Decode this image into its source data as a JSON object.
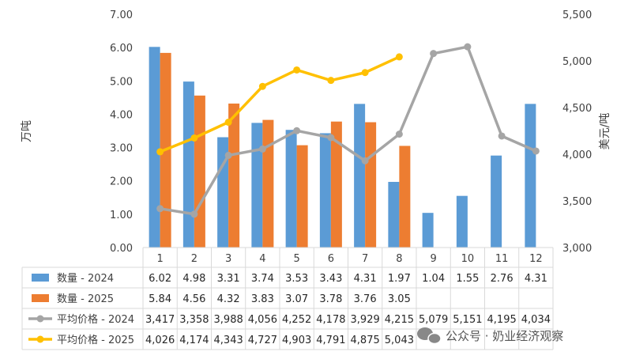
{
  "chart_data": {
    "type": "bar",
    "categories": [
      "1",
      "2",
      "3",
      "4",
      "5",
      "6",
      "7",
      "8",
      "9",
      "10",
      "11",
      "12"
    ],
    "ylabel_left": "万吨",
    "ylabel_right": "美元/吨",
    "ylim_left": [
      0,
      7
    ],
    "yticks_left": [
      "0.00",
      "1.00",
      "2.00",
      "3.00",
      "4.00",
      "5.00",
      "6.00",
      "7.00"
    ],
    "ylim_right": [
      3000,
      5500
    ],
    "yticks_right": [
      "3,000",
      "3,500",
      "4,000",
      "4,500",
      "5,000",
      "5,500"
    ],
    "grid": false,
    "legend": "data-table",
    "bar_series": [
      {
        "name": "数量 - 2024",
        "color": "#5B9BD5",
        "values": [
          6.02,
          4.98,
          3.31,
          3.74,
          3.53,
          3.43,
          4.31,
          1.97,
          1.04,
          1.55,
          2.76,
          4.31
        ],
        "labels": [
          "6.02",
          "4.98",
          "3.31",
          "3.74",
          "3.53",
          "3.43",
          "4.31",
          "1.97",
          "1.04",
          "1.55",
          "2.76",
          "4.31"
        ]
      },
      {
        "name": "数量 - 2025",
        "color": "#ED7D31",
        "values": [
          5.84,
          4.56,
          4.32,
          3.83,
          3.07,
          3.78,
          3.76,
          3.05
        ],
        "labels": [
          "5.84",
          "4.56",
          "4.32",
          "3.83",
          "3.07",
          "3.78",
          "3.76",
          "3.05"
        ]
      }
    ],
    "line_series": [
      {
        "name": "平均价格 - 2024",
        "color": "#A5A5A5",
        "axis": "right",
        "values": [
          3417,
          3358,
          3988,
          4056,
          4252,
          4178,
          3929,
          4215,
          5079,
          5151,
          4195,
          4034
        ],
        "labels": [
          "3,417",
          "3,358",
          "3,988",
          "4,056",
          "4,252",
          "4,178",
          "3,929",
          "4,215",
          "5,079",
          "5,151",
          "4,195",
          "4,034"
        ]
      },
      {
        "name": "平均价格 - 2025",
        "color": "#FFC000",
        "axis": "right",
        "values": [
          4026,
          4174,
          4343,
          4727,
          4903,
          4791,
          4875,
          5043
        ],
        "labels": [
          "4,026",
          "4,174",
          "4,343",
          "4,727",
          "4,903",
          "4,791",
          "4,875",
          "5,043"
        ]
      }
    ]
  },
  "watermark": {
    "text": "公众号 · 奶业经济观察",
    "icon": "wechat-icon"
  }
}
